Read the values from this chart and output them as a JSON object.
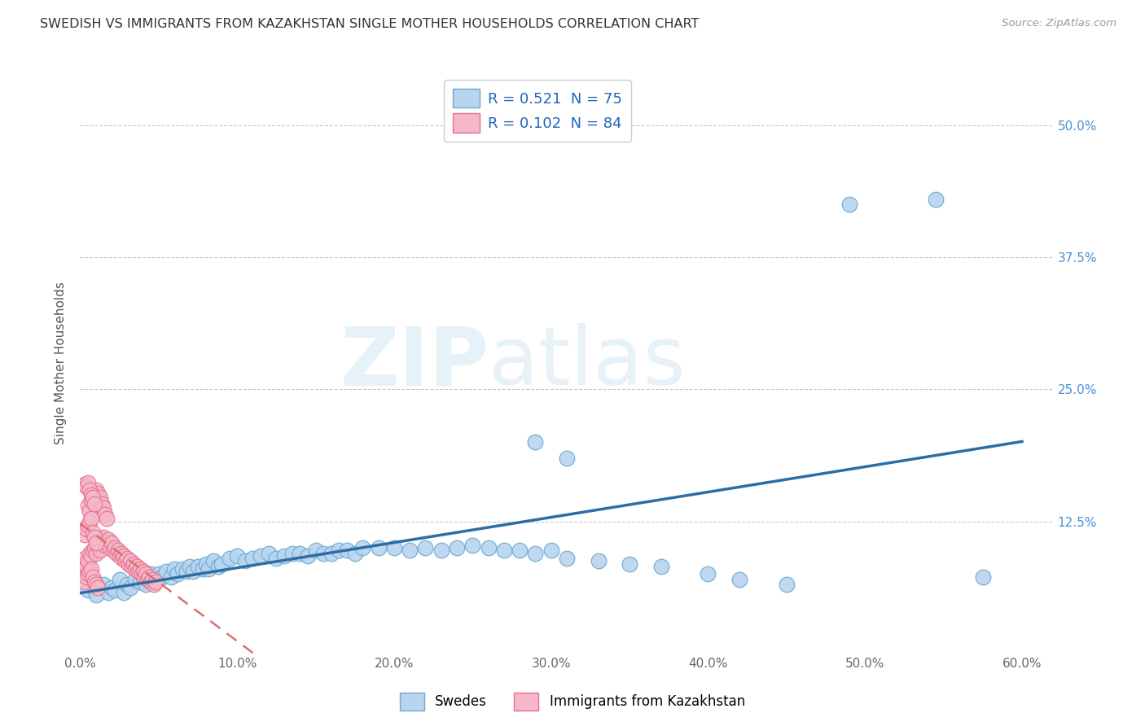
{
  "title": "SWEDISH VS IMMIGRANTS FROM KAZAKHSTAN SINGLE MOTHER HOUSEHOLDS CORRELATION CHART",
  "source": "Source: ZipAtlas.com",
  "ylabel": "Single Mother Households",
  "xlim": [
    0.0,
    0.62
  ],
  "ylim": [
    0.0,
    0.55
  ],
  "xtick_vals": [
    0.0,
    0.1,
    0.2,
    0.3,
    0.4,
    0.5,
    0.6
  ],
  "xtick_labels": [
    "0.0%",
    "10.0%",
    "20.0%",
    "30.0%",
    "40.0%",
    "50.0%",
    "60.0%"
  ],
  "ytick_vals": [
    0.125,
    0.25,
    0.375,
    0.5
  ],
  "ytick_labels": [
    "12.5%",
    "25.0%",
    "37.5%",
    "50.0%"
  ],
  "legend_R_blue": "R = 0.521",
  "legend_N_blue": "N = 75",
  "legend_R_pink": "R = 0.102",
  "legend_N_pink": "N = 84",
  "legend_label_blue": "Swedes",
  "legend_label_pink": "Immigrants from Kazakhstan",
  "blue_scatter_x": [
    0.005,
    0.01,
    0.015,
    0.018,
    0.02,
    0.022,
    0.025,
    0.028,
    0.03,
    0.032,
    0.035,
    0.038,
    0.04,
    0.042,
    0.045,
    0.048,
    0.05,
    0.052,
    0.055,
    0.058,
    0.06,
    0.062,
    0.065,
    0.068,
    0.07,
    0.072,
    0.075,
    0.078,
    0.08,
    0.082,
    0.085,
    0.088,
    0.09,
    0.095,
    0.1,
    0.105,
    0.11,
    0.115,
    0.12,
    0.125,
    0.13,
    0.135,
    0.14,
    0.145,
    0.15,
    0.155,
    0.16,
    0.165,
    0.17,
    0.175,
    0.18,
    0.19,
    0.2,
    0.21,
    0.22,
    0.23,
    0.24,
    0.25,
    0.26,
    0.27,
    0.28,
    0.29,
    0.3,
    0.31,
    0.33,
    0.35,
    0.37,
    0.4,
    0.42,
    0.45,
    0.29,
    0.31,
    0.49,
    0.545,
    0.575
  ],
  "blue_scatter_y": [
    0.06,
    0.055,
    0.065,
    0.058,
    0.062,
    0.06,
    0.07,
    0.058,
    0.065,
    0.062,
    0.07,
    0.068,
    0.072,
    0.065,
    0.075,
    0.07,
    0.075,
    0.072,
    0.078,
    0.072,
    0.08,
    0.075,
    0.08,
    0.078,
    0.082,
    0.078,
    0.082,
    0.08,
    0.085,
    0.08,
    0.088,
    0.082,
    0.085,
    0.09,
    0.092,
    0.088,
    0.09,
    0.092,
    0.095,
    0.09,
    0.092,
    0.095,
    0.095,
    0.092,
    0.098,
    0.095,
    0.095,
    0.098,
    0.098,
    0.095,
    0.1,
    0.1,
    0.1,
    0.098,
    0.1,
    0.098,
    0.1,
    0.102,
    0.1,
    0.098,
    0.098,
    0.095,
    0.098,
    0.09,
    0.088,
    0.085,
    0.082,
    0.075,
    0.07,
    0.065,
    0.2,
    0.185,
    0.425,
    0.43,
    0.072
  ],
  "pink_scatter_x": [
    0.002,
    0.003,
    0.004,
    0.005,
    0.006,
    0.007,
    0.008,
    0.009,
    0.01,
    0.011,
    0.012,
    0.013,
    0.014,
    0.015,
    0.016,
    0.017,
    0.018,
    0.019,
    0.02,
    0.021,
    0.022,
    0.023,
    0.024,
    0.025,
    0.026,
    0.027,
    0.028,
    0.029,
    0.03,
    0.031,
    0.032,
    0.033,
    0.034,
    0.035,
    0.036,
    0.037,
    0.038,
    0.039,
    0.04,
    0.041,
    0.042,
    0.043,
    0.044,
    0.045,
    0.046,
    0.047,
    0.048,
    0.005,
    0.006,
    0.007,
    0.008,
    0.009,
    0.01,
    0.011,
    0.012,
    0.013,
    0.014,
    0.015,
    0.016,
    0.017,
    0.003,
    0.004,
    0.005,
    0.006,
    0.007,
    0.008,
    0.009,
    0.003,
    0.004,
    0.005,
    0.006,
    0.007,
    0.008,
    0.009,
    0.01,
    0.003,
    0.004,
    0.005,
    0.006,
    0.007,
    0.008,
    0.009,
    0.01,
    0.011
  ],
  "pink_scatter_y": [
    0.085,
    0.09,
    0.082,
    0.088,
    0.095,
    0.092,
    0.098,
    0.1,
    0.095,
    0.102,
    0.105,
    0.098,
    0.108,
    0.11,
    0.102,
    0.105,
    0.108,
    0.1,
    0.105,
    0.098,
    0.1,
    0.095,
    0.098,
    0.092,
    0.095,
    0.09,
    0.092,
    0.088,
    0.09,
    0.085,
    0.088,
    0.082,
    0.085,
    0.08,
    0.082,
    0.078,
    0.08,
    0.075,
    0.078,
    0.072,
    0.075,
    0.07,
    0.072,
    0.068,
    0.07,
    0.065,
    0.068,
    0.14,
    0.135,
    0.145,
    0.15,
    0.148,
    0.155,
    0.152,
    0.145,
    0.148,
    0.142,
    0.138,
    0.132,
    0.128,
    0.16,
    0.158,
    0.162,
    0.155,
    0.15,
    0.148,
    0.142,
    0.112,
    0.118,
    0.122,
    0.125,
    0.128,
    0.115,
    0.11,
    0.105,
    0.068,
    0.072,
    0.075,
    0.078,
    0.08,
    0.072,
    0.068,
    0.065,
    0.062
  ],
  "blue_line_color": "#2e6da4",
  "pink_line_color": "#d87070",
  "blue_scatter_facecolor": "#b8d4ee",
  "blue_scatter_edgecolor": "#6aaad4",
  "pink_scatter_facecolor": "#f4b8c8",
  "pink_scatter_edgecolor": "#e87090",
  "watermark_ZIP": "ZIP",
  "watermark_atlas": "atlas",
  "background_color": "#ffffff",
  "grid_color": "#c8c8c8"
}
